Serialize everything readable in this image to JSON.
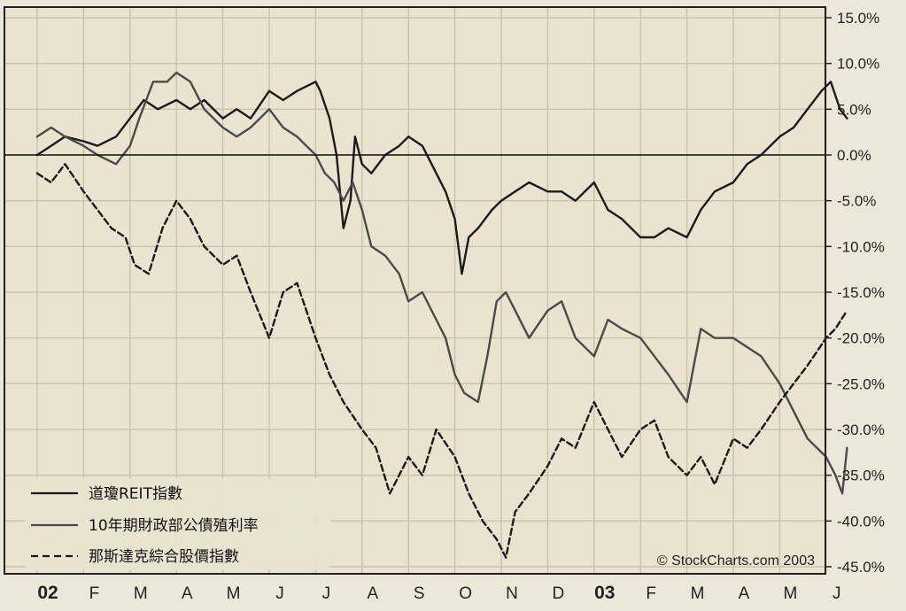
{
  "chart_data": {
    "type": "line",
    "title": "",
    "xlabel": "",
    "ylabel": "",
    "x_tick_labels": [
      "02",
      "F",
      "M",
      "A",
      "M",
      "J",
      "J",
      "A",
      "S",
      "O",
      "N",
      "D",
      "03",
      "F",
      "M",
      "A",
      "M",
      "J"
    ],
    "y_tick_labels": [
      "15.0%",
      "10.0%",
      "5.0%",
      "0.0%",
      "-5.0%",
      "-10.0%",
      "-15.0%",
      "-20.0%",
      "-25.0%",
      "-30.0%",
      "-35.0%",
      "-40.0%",
      "-45.0%"
    ],
    "ylim": [
      -45,
      15
    ],
    "zero_line": 0,
    "grid": true,
    "legend_position": "bottom-left",
    "copyright": "© StockCharts.com 2003",
    "series": [
      {
        "name": "道瓊REIT指數",
        "style": "solid",
        "color": "#1a1a1a",
        "points": [
          [
            0,
            0
          ],
          [
            0.3,
            1
          ],
          [
            0.6,
            2
          ],
          [
            1.0,
            1.5
          ],
          [
            1.3,
            1
          ],
          [
            1.7,
            2
          ],
          [
            2.0,
            4
          ],
          [
            2.3,
            6
          ],
          [
            2.6,
            5
          ],
          [
            3.0,
            6
          ],
          [
            3.3,
            5
          ],
          [
            3.6,
            6
          ],
          [
            4.0,
            4
          ],
          [
            4.3,
            5
          ],
          [
            4.6,
            4
          ],
          [
            5.0,
            7
          ],
          [
            5.3,
            6
          ],
          [
            5.6,
            7
          ],
          [
            6.0,
            8
          ],
          [
            6.1,
            7
          ],
          [
            6.3,
            4
          ],
          [
            6.45,
            0
          ],
          [
            6.6,
            -8
          ],
          [
            6.75,
            -5
          ],
          [
            6.85,
            2
          ],
          [
            7.0,
            -1
          ],
          [
            7.2,
            -2
          ],
          [
            7.5,
            0
          ],
          [
            7.8,
            1
          ],
          [
            8.0,
            2
          ],
          [
            8.3,
            1
          ],
          [
            8.6,
            -2
          ],
          [
            8.8,
            -4
          ],
          [
            9.0,
            -7
          ],
          [
            9.15,
            -13
          ],
          [
            9.3,
            -9
          ],
          [
            9.5,
            -8
          ],
          [
            9.8,
            -6
          ],
          [
            10.0,
            -5
          ],
          [
            10.3,
            -4
          ],
          [
            10.6,
            -3
          ],
          [
            11.0,
            -4
          ],
          [
            11.3,
            -4
          ],
          [
            11.6,
            -5
          ],
          [
            12.0,
            -3
          ],
          [
            12.3,
            -6
          ],
          [
            12.6,
            -7
          ],
          [
            13.0,
            -9
          ],
          [
            13.3,
            -9
          ],
          [
            13.6,
            -8
          ],
          [
            14.0,
            -9
          ],
          [
            14.3,
            -6
          ],
          [
            14.6,
            -4
          ],
          [
            15.0,
            -3
          ],
          [
            15.3,
            -1
          ],
          [
            15.6,
            0
          ],
          [
            16.0,
            2
          ],
          [
            16.3,
            3
          ],
          [
            16.6,
            5
          ],
          [
            16.9,
            7
          ],
          [
            17.1,
            8
          ],
          [
            17.3,
            5
          ],
          [
            17.45,
            4
          ]
        ]
      },
      {
        "name": "10年期財政部公債殖利率",
        "style": "solid",
        "color": "#4a4a4a",
        "points": [
          [
            0,
            2
          ],
          [
            0.3,
            3
          ],
          [
            0.6,
            2
          ],
          [
            1.0,
            1
          ],
          [
            1.3,
            0
          ],
          [
            1.7,
            -1
          ],
          [
            2.0,
            1
          ],
          [
            2.2,
            4
          ],
          [
            2.5,
            8
          ],
          [
            2.8,
            8
          ],
          [
            3.0,
            9
          ],
          [
            3.3,
            8
          ],
          [
            3.6,
            5
          ],
          [
            4.0,
            3
          ],
          [
            4.3,
            2
          ],
          [
            4.6,
            3
          ],
          [
            5.0,
            5
          ],
          [
            5.3,
            3
          ],
          [
            5.6,
            2
          ],
          [
            6.0,
            0
          ],
          [
            6.2,
            -2
          ],
          [
            6.4,
            -3
          ],
          [
            6.6,
            -5
          ],
          [
            6.8,
            -3
          ],
          [
            7.0,
            -6
          ],
          [
            7.2,
            -10
          ],
          [
            7.5,
            -11
          ],
          [
            7.8,
            -13
          ],
          [
            8.0,
            -16
          ],
          [
            8.3,
            -15
          ],
          [
            8.6,
            -18
          ],
          [
            8.8,
            -20
          ],
          [
            9.0,
            -24
          ],
          [
            9.2,
            -26
          ],
          [
            9.5,
            -27
          ],
          [
            9.7,
            -22
          ],
          [
            9.9,
            -16
          ],
          [
            10.1,
            -15
          ],
          [
            10.3,
            -17
          ],
          [
            10.6,
            -20
          ],
          [
            11.0,
            -17
          ],
          [
            11.3,
            -16
          ],
          [
            11.6,
            -20
          ],
          [
            12.0,
            -22
          ],
          [
            12.3,
            -18
          ],
          [
            12.6,
            -19
          ],
          [
            13.0,
            -20
          ],
          [
            13.3,
            -22
          ],
          [
            13.6,
            -24
          ],
          [
            14.0,
            -27
          ],
          [
            14.3,
            -19
          ],
          [
            14.6,
            -20
          ],
          [
            15.0,
            -20
          ],
          [
            15.3,
            -21
          ],
          [
            15.6,
            -22
          ],
          [
            16.0,
            -25
          ],
          [
            16.3,
            -28
          ],
          [
            16.6,
            -31
          ],
          [
            17.0,
            -33
          ],
          [
            17.2,
            -35
          ],
          [
            17.35,
            -37
          ],
          [
            17.45,
            -32
          ]
        ]
      },
      {
        "name": "那斯達克綜合股價指數",
        "style": "dashed",
        "color": "#1a1a1a",
        "points": [
          [
            0,
            -2
          ],
          [
            0.3,
            -3
          ],
          [
            0.6,
            -1
          ],
          [
            1.0,
            -4
          ],
          [
            1.3,
            -6
          ],
          [
            1.6,
            -8
          ],
          [
            1.9,
            -9
          ],
          [
            2.1,
            -12
          ],
          [
            2.4,
            -13
          ],
          [
            2.7,
            -8
          ],
          [
            3.0,
            -5
          ],
          [
            3.3,
            -7
          ],
          [
            3.6,
            -10
          ],
          [
            4.0,
            -12
          ],
          [
            4.3,
            -11
          ],
          [
            4.6,
            -15
          ],
          [
            5.0,
            -20
          ],
          [
            5.3,
            -15
          ],
          [
            5.6,
            -14
          ],
          [
            6.0,
            -20
          ],
          [
            6.3,
            -24
          ],
          [
            6.6,
            -27
          ],
          [
            7.0,
            -30
          ],
          [
            7.3,
            -32
          ],
          [
            7.6,
            -37
          ],
          [
            8.0,
            -33
          ],
          [
            8.3,
            -35
          ],
          [
            8.6,
            -30
          ],
          [
            9.0,
            -33
          ],
          [
            9.3,
            -37
          ],
          [
            9.6,
            -40
          ],
          [
            9.9,
            -42
          ],
          [
            10.1,
            -44
          ],
          [
            10.3,
            -39
          ],
          [
            10.6,
            -37
          ],
          [
            11.0,
            -34
          ],
          [
            11.3,
            -31
          ],
          [
            11.6,
            -32
          ],
          [
            12.0,
            -27
          ],
          [
            12.3,
            -30
          ],
          [
            12.6,
            -33
          ],
          [
            13.0,
            -30
          ],
          [
            13.3,
            -29
          ],
          [
            13.6,
            -33
          ],
          [
            14.0,
            -35
          ],
          [
            14.3,
            -33
          ],
          [
            14.6,
            -36
          ],
          [
            15.0,
            -31
          ],
          [
            15.3,
            -32
          ],
          [
            15.6,
            -30
          ],
          [
            16.0,
            -27
          ],
          [
            16.3,
            -25
          ],
          [
            16.6,
            -23
          ],
          [
            17.0,
            -20
          ],
          [
            17.2,
            -19
          ],
          [
            17.45,
            -17
          ]
        ]
      }
    ]
  }
}
